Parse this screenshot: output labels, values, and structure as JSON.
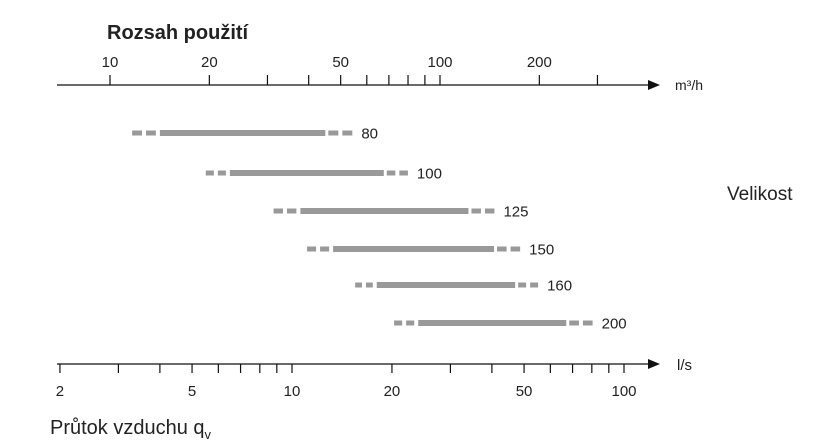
{
  "chart_data": {
    "type": "range",
    "title": "Rozsah použití",
    "side_label": "Velikost",
    "top_axis": {
      "unit": "m³/h",
      "scale": "log",
      "tick_labels": [
        "10",
        "20",
        "50",
        "100",
        "200"
      ],
      "ticks": [
        10,
        20,
        30,
        40,
        50,
        60,
        70,
        80,
        90,
        100,
        200,
        300
      ]
    },
    "bottom_axis": {
      "unit": "l/s",
      "label": "Průtok vzduchu q",
      "label_subscript": "v",
      "scale": "log",
      "tick_labels": [
        "2",
        "5",
        "10",
        "20",
        "50",
        "100"
      ],
      "ticks": [
        2,
        3,
        4,
        5,
        6,
        7,
        8,
        9,
        10,
        20,
        30,
        40,
        50,
        60,
        70,
        80,
        90,
        100
      ]
    },
    "bar_color": "#999999",
    "series": [
      {
        "name": "80",
        "extended_min": 3.3,
        "min": 4.0,
        "max": 12.6,
        "extended_max": 15.3
      },
      {
        "name": "100",
        "extended_min": 5.5,
        "min": 6.5,
        "max": 18.9,
        "extended_max": 22.5
      },
      {
        "name": "125",
        "extended_min": 8.8,
        "min": 10.6,
        "max": 34,
        "extended_max": 41
      },
      {
        "name": "150",
        "extended_min": 11.1,
        "min": 13.3,
        "max": 40.6,
        "extended_max": 49
      },
      {
        "name": "160",
        "extended_min": 15.5,
        "min": 18,
        "max": 47,
        "extended_max": 55.5
      },
      {
        "name": "200",
        "extended_min": 20.3,
        "min": 24,
        "max": 67,
        "extended_max": 81
      }
    ]
  }
}
